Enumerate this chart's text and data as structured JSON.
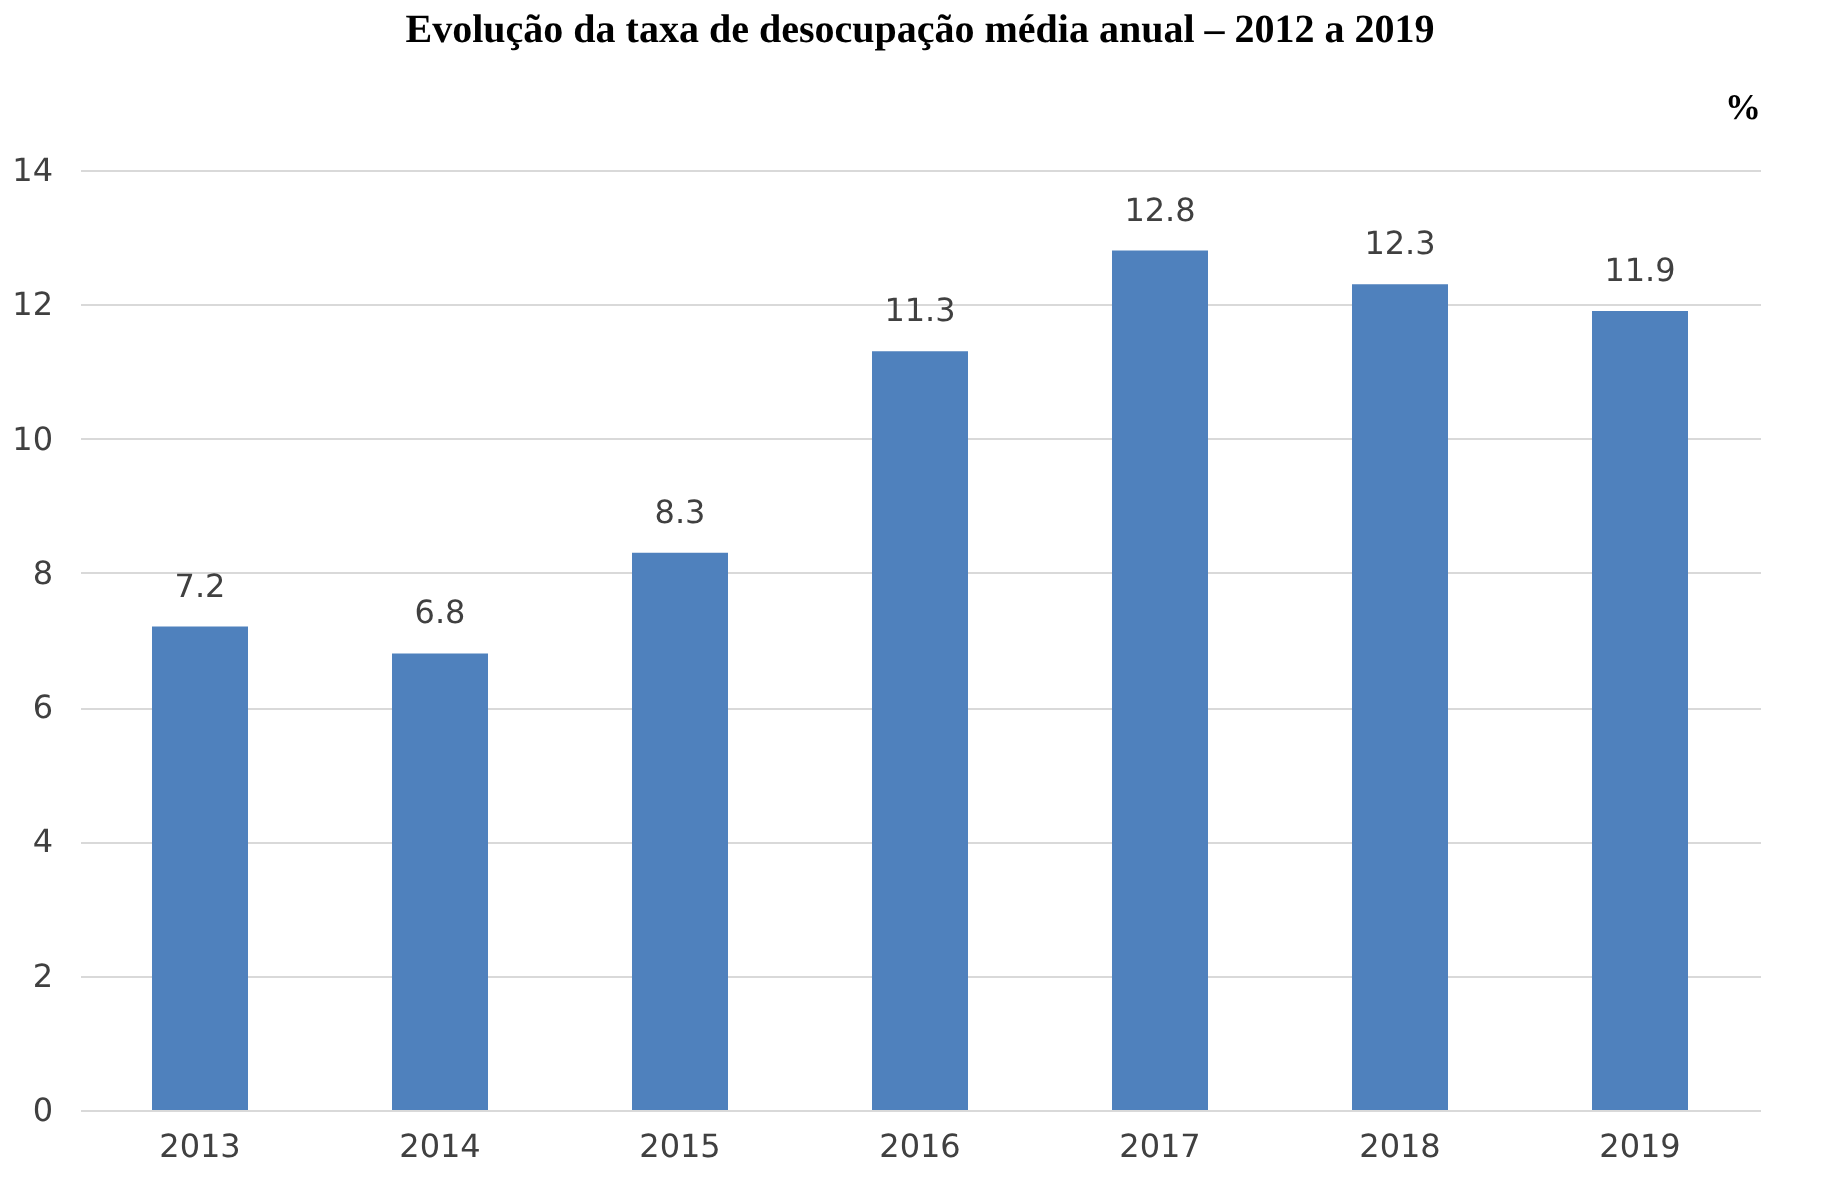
{
  "chart_data": {
    "type": "bar",
    "title": "Evolução da taxa de desocupação média anual – 2012 a 2019",
    "ylabel": "%",
    "categories": [
      "2013",
      "2014",
      "2015",
      "2016",
      "2017",
      "2018",
      "2019"
    ],
    "values": [
      7.2,
      6.8,
      8.3,
      11.3,
      12.8,
      12.3,
      11.9
    ],
    "color": "#4f81bd",
    "ylim": [
      0,
      14
    ],
    "yticks": [
      0,
      2,
      4,
      6,
      8,
      10,
      12,
      14
    ],
    "grid": "y",
    "data_labels": true
  }
}
